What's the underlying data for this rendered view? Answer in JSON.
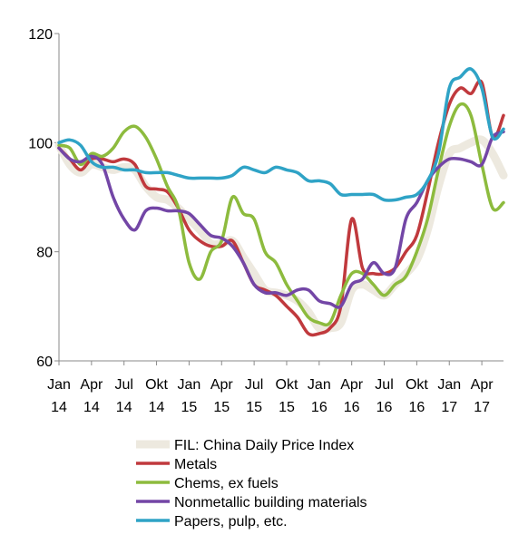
{
  "chart_data": {
    "type": "line",
    "title": "",
    "xlabel": "",
    "ylabel": "",
    "ylim": [
      60,
      120
    ],
    "yticks": [
      "60",
      "80",
      "100",
      "120"
    ],
    "xlim": [
      "2014-01",
      "2017-06"
    ],
    "xticks": [
      {
        "month": "2014-01",
        "line1": "Jan",
        "line2": "14"
      },
      {
        "month": "2014-04",
        "line1": "Apr",
        "line2": "14"
      },
      {
        "month": "2014-07",
        "line1": "Jul",
        "line2": "14"
      },
      {
        "month": "2014-10",
        "line1": "Okt",
        "line2": "14"
      },
      {
        "month": "2015-01",
        "line1": "Jan",
        "line2": "15"
      },
      {
        "month": "2015-04",
        "line1": "Apr",
        "line2": "15"
      },
      {
        "month": "2015-07",
        "line1": "Jul",
        "line2": "15"
      },
      {
        "month": "2015-10",
        "line1": "Okt",
        "line2": "15"
      },
      {
        "month": "2016-01",
        "line1": "Jan",
        "line2": "16"
      },
      {
        "month": "2016-04",
        "line1": "Apr",
        "line2": "16"
      },
      {
        "month": "2016-07",
        "line1": "Jul",
        "line2": "16"
      },
      {
        "month": "2016-10",
        "line1": "Okt",
        "line2": "16"
      },
      {
        "month": "2017-01",
        "line1": "Jan",
        "line2": "17"
      },
      {
        "month": "2017-04",
        "line1": "Apr",
        "line2": "17"
      }
    ],
    "grid": false,
    "legend_position": "bottom",
    "x": [
      "2014-01",
      "2014-02",
      "2014-03",
      "2014-04",
      "2014-05",
      "2014-06",
      "2014-07",
      "2014-08",
      "2014-09",
      "2014-10",
      "2014-11",
      "2014-12",
      "2015-01",
      "2015-02",
      "2015-03",
      "2015-04",
      "2015-05",
      "2015-06",
      "2015-07",
      "2015-08",
      "2015-09",
      "2015-10",
      "2015-11",
      "2015-12",
      "2016-01",
      "2016-02",
      "2016-03",
      "2016-04",
      "2016-05",
      "2016-06",
      "2016-07",
      "2016-08",
      "2016-09",
      "2016-10",
      "2016-11",
      "2016-12",
      "2017-01",
      "2017-02",
      "2017-03",
      "2017-04",
      "2017-05",
      "2017-06"
    ],
    "series": [
      {
        "name": "FIL: China Daily Price Index",
        "color": "#ede9df",
        "values": [
          99.5,
          96,
          94.5,
          96,
          95.5,
          95,
          95.5,
          95,
          92,
          90,
          89.5,
          88,
          86,
          84,
          81.5,
          81.5,
          82,
          79,
          76,
          73,
          72.5,
          72,
          71,
          69,
          66,
          66,
          67,
          73,
          74,
          73,
          72,
          74,
          76,
          78.5,
          84,
          92,
          98,
          99,
          100,
          100.5,
          98,
          94
        ]
      },
      {
        "name": "Metals",
        "color": "#c0393d",
        "values": [
          99,
          97,
          95,
          97,
          97,
          96.5,
          97,
          96,
          92,
          91.5,
          91,
          88,
          84,
          82,
          81,
          81,
          82,
          78,
          74,
          73,
          72,
          70,
          68,
          65,
          65,
          66,
          70,
          86,
          77,
          76,
          76,
          77,
          80,
          83,
          91,
          100,
          107,
          110,
          109,
          111,
          101,
          105
        ]
      },
      {
        "name": "Chems, ex fuels",
        "color": "#8dbb3e",
        "values": [
          99.5,
          99,
          96,
          98,
          97.5,
          99,
          102,
          103,
          101,
          97,
          92,
          88,
          78,
          75,
          80,
          82,
          90,
          87,
          86,
          80,
          78,
          74,
          71,
          68,
          67,
          67,
          72,
          76,
          76,
          74,
          72,
          74,
          75.5,
          80,
          86,
          95,
          103,
          107,
          105,
          96,
          88,
          89
        ]
      },
      {
        "name": "Nonmetallic building materials",
        "color": "#7346a6",
        "values": [
          99,
          97,
          96.5,
          97.5,
          96,
          90,
          86,
          84,
          87.5,
          88,
          87.5,
          87.5,
          87,
          85,
          83,
          82.5,
          81,
          78,
          74,
          72.5,
          72.5,
          72,
          73,
          73,
          71,
          70.5,
          70,
          74,
          75,
          78,
          76,
          77,
          86,
          89,
          93,
          95.5,
          97,
          97,
          96.5,
          96,
          101,
          102
        ]
      },
      {
        "name": "Papers, pulp, etc.",
        "color": "#2fa3c6",
        "values": [
          100,
          100.5,
          99.5,
          96.5,
          95.5,
          95.5,
          95,
          95,
          94.5,
          94.5,
          94.5,
          94,
          93.5,
          93.5,
          93.5,
          93.5,
          94,
          95.5,
          95,
          94.5,
          95.5,
          95,
          94.5,
          93,
          93,
          92.5,
          90.5,
          90.5,
          90.5,
          90.5,
          89.5,
          89.5,
          90,
          90.5,
          93,
          98,
          110,
          112,
          113.5,
          110,
          101,
          102.5
        ]
      }
    ]
  }
}
